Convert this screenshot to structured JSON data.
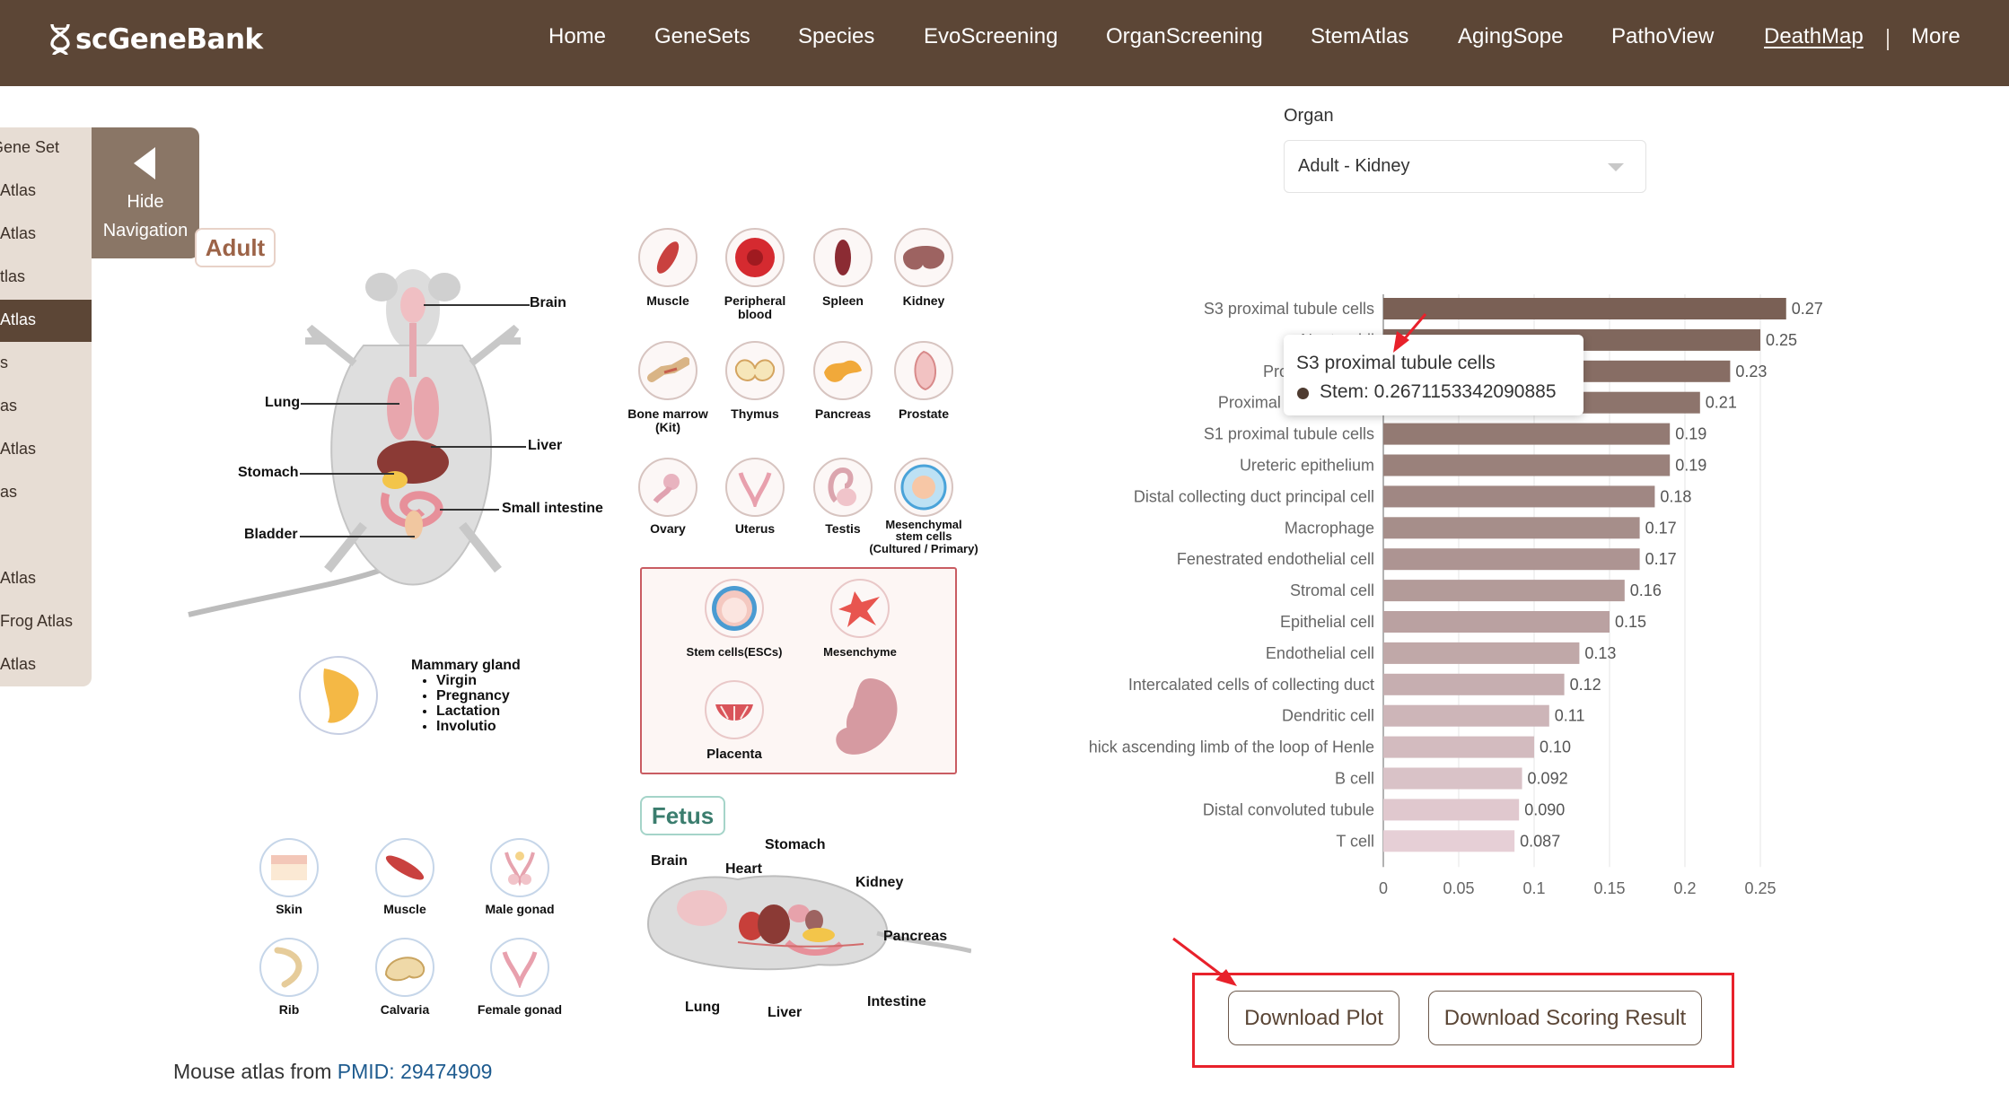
{
  "brand": {
    "logo_text": "scGeneBank",
    "logo_icon": "dna-icon"
  },
  "nav": {
    "items": [
      "Home",
      "GeneSets",
      "Species",
      "EvoScreening",
      "OrganScreening",
      "StemAtlas",
      "AgingSope",
      "PathoView",
      "DeathMap",
      "More"
    ],
    "active": "DeathMap"
  },
  "sidebar": {
    "items": [
      "Gene Set",
      "Atlas",
      "Atlas",
      "tlas",
      "Atlas",
      "s",
      "as",
      "Atlas",
      "as",
      "",
      "Atlas",
      "Frog Atlas",
      "Atlas"
    ],
    "active_index": 4,
    "hide_nav_line1": "Hide",
    "hide_nav_line2": "Navigation"
  },
  "atlas": {
    "adult_tag": "Adult",
    "fetus_tag": "Fetus",
    "mouse_labels": {
      "brain": "Brain",
      "lung": "Lung",
      "liver": "Liver",
      "stomach": "Stomach",
      "small_intestine": "Small intestine",
      "bladder": "Bladder"
    },
    "organs": {
      "muscle": "Muscle",
      "peripheral_blood_1": "Peripheral",
      "peripheral_blood_2": "blood",
      "spleen": "Spleen",
      "kidney": "Kidney",
      "bone_marrow_1": "Bone marrow",
      "bone_marrow_2": "(Kit)",
      "thymus": "Thymus",
      "pancreas": "Pancreas",
      "prostate": "Prostate",
      "ovary": "Ovary",
      "uterus": "Uterus",
      "testis": "Testis",
      "msc_1": "Mesenchymal",
      "msc_2": "stem cells",
      "msc_3": "(Cultured / Primary)"
    },
    "embryo_box": {
      "stem_cells": "Stem cells(ESCs)",
      "mesenchyme": "Mesenchyme",
      "placenta": "Placenta"
    },
    "mammary": {
      "title": "Mammary gland",
      "items": [
        "Virgin",
        "Pregnancy",
        "Lactation",
        "Involutio"
      ]
    },
    "fetal_organs": {
      "skin": "Skin",
      "muscle": "Muscle",
      "male_gonad": "Male gonad",
      "rib": "Rib",
      "calvaria": "Calvaria",
      "female_gonad": "Female gonad"
    },
    "fetus_labels": {
      "brain": "Brain",
      "heart": "Heart",
      "stomach": "Stomach",
      "kidney": "Kidney",
      "pancreas": "Pancreas",
      "intestine": "Intestine",
      "lung": "Lung",
      "liver": "Liver"
    }
  },
  "footer": {
    "pmid_prefix": "Mouse atlas from ",
    "pmid_link": "PMID: 29474909"
  },
  "organ_selector": {
    "label": "Organ",
    "value": "Adult - Kidney"
  },
  "tooltip": {
    "title": "S3 proximal tubule cells",
    "text": "Stem: 0.2671153342090885"
  },
  "buttons": {
    "download_plot": "Download Plot",
    "download_scoring": "Download Scoring Result"
  },
  "colors": {
    "brand": "#5c4636",
    "accent_red": "#e8212b",
    "bar_dark": "#7a6055",
    "bar_light": "#e6cfd6",
    "link": "#1e5b8f"
  },
  "chart_data": {
    "type": "bar",
    "orientation": "horizontal",
    "categories": [
      "S3 proximal tubule cells",
      "Neutrophil",
      "Proximal tubule",
      "Proximal tubule brush",
      "S1 proximal tubule cells",
      "Ureteric epithelium",
      "Distal collecting duct principal cell",
      "Macrophage",
      "Fenestrated endothelial cell",
      "Stromal cell",
      "Epithelial cell",
      "Endothelial cell",
      "Intercalated cells of collecting duct",
      "Dendritic cell",
      "hick ascending limb of the loop of Henle",
      "B cell",
      "Distal convoluted tubule",
      "T cell"
    ],
    "values": [
      0.2671153342090885,
      0.25,
      0.23,
      0.21,
      0.19,
      0.19,
      0.18,
      0.17,
      0.17,
      0.16,
      0.15,
      0.13,
      0.12,
      0.11,
      0.1,
      0.092,
      0.09,
      0.087
    ],
    "labels": [
      "0.27",
      "0.25",
      "0.23",
      "0.21",
      "0.19",
      "0.19",
      "0.18",
      "0.17",
      "0.17",
      "0.16",
      "0.15",
      "0.13",
      "0.12",
      "0.11",
      "0.10",
      "0.092",
      "0.090",
      "0.087"
    ],
    "xticks": [
      0,
      0.05,
      0.1,
      0.15,
      0.2,
      0.25
    ],
    "xtick_labels": [
      "0",
      "0.05",
      "0.1",
      "0.15",
      "0.2",
      "0.25"
    ],
    "xlim": [
      0,
      0.27
    ],
    "grid": true
  }
}
